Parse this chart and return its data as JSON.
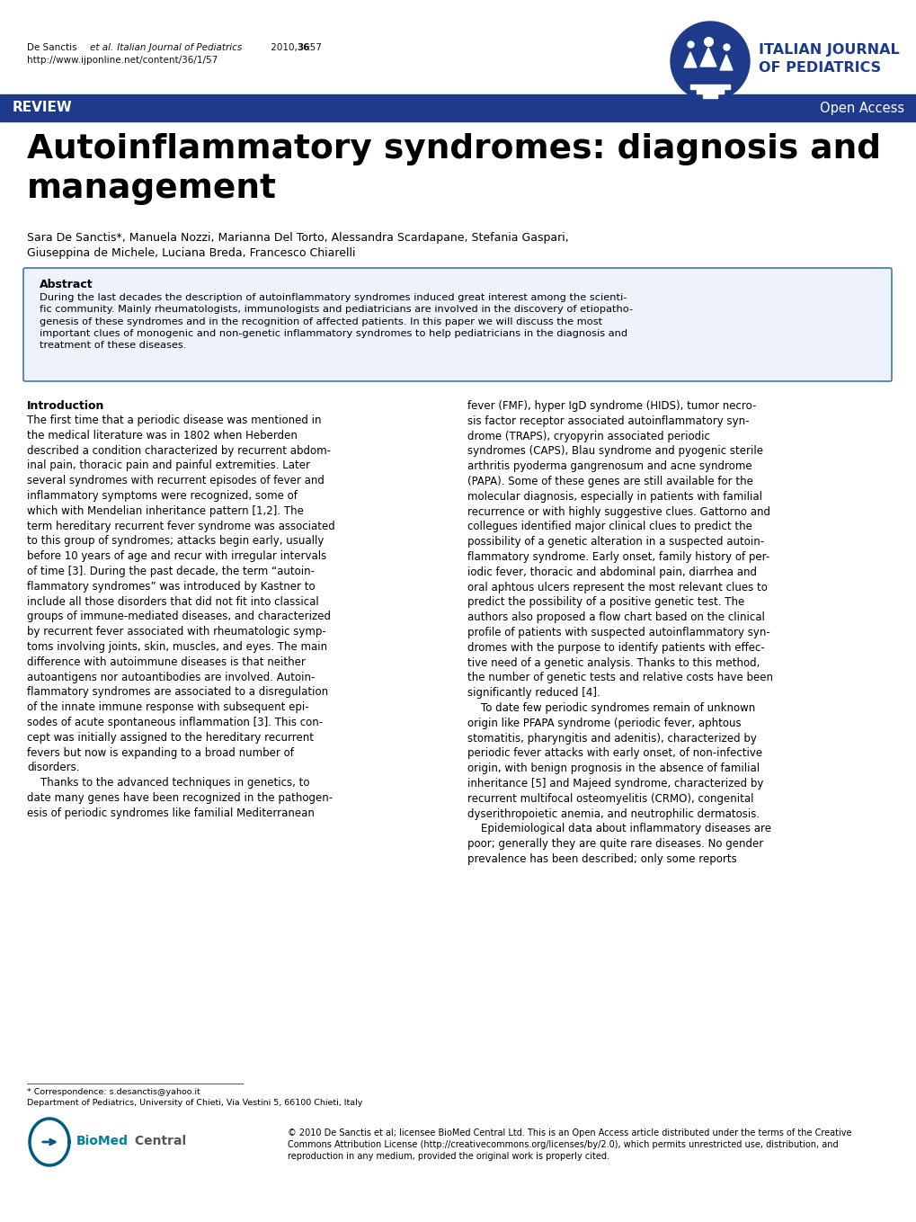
{
  "bg_color": "#ffffff",
  "header_url": "http://www.ijponline.net/content/36/1/57",
  "journal_name_line1": "ITALIAN JOURNAL",
  "journal_name_line2": "OF PEDIATRICS",
  "journal_color": "#1e3a8a",
  "review_bar_color": "#1e3a8a",
  "review_text": "REVIEW",
  "open_access_text": "Open Access",
  "title_line1": "Autoinflammatory syndromes: diagnosis and",
  "title_line2": "management",
  "authors_line1": "Sara De Sanctis*, Manuela Nozzi, Marianna Del Torto, Alessandra Scardapane, Stefania Gaspari,",
  "authors_line2": "Giuseppina de Michele, Luciana Breda, Francesco Chiarelli",
  "abstract_title": "Abstract",
  "abstract_text": "During the last decades the description of autoinflammatory syndromes induced great interest among the scienti-\nfic community. Mainly rheumatologists, immunologists and pediatricians are involved in the discovery of etiopatho-\ngenesis of these syndromes and in the recognition of affected patients. In this paper we will discuss the most\nimportant clues of monogenic and non-genetic inflammatory syndromes to help pediatricians in the diagnosis and\ntreatment of these diseases.",
  "abstract_border_color": "#4472c4",
  "intro_title": "Introduction",
  "intro_col1_para1": "The first time that a periodic disease was mentioned in\nthe medical literature was in 1802 when Heberden\ndescribed a condition characterized by recurrent abdom-\ninal pain, thoracic pain and painful extremities. Later\nseveral syndromes with recurrent episodes of fever and\ninflammatory symptoms were recognized, some of\nwhich with Mendelian inheritance pattern [1,2]. The\nterm hereditary recurrent fever syndrome was associated\nto this group of syndromes; attacks begin early, usually\nbefore 10 years of age and recur with irregular intervals\nof time [3]. During the past decade, the term “autoin-\nflammatory syndromes” was introduced by Kastner to\ninclude all those disorders that did not fit into classical\ngroups of immune-mediated diseases, and characterized\nby recurrent fever associated with rheumatologic symp-\ntoms involving joints, skin, muscles, and eyes. The main\ndifference with autoimmune diseases is that neither\nautoantigens nor autoantibodies are involved. Autoin-\nflammatory syndromes are associated to a disregulation\nof the innate immune response with subsequent epi-\nsodes of acute spontaneous inflammation [3]. This con-\ncept was initially assigned to the hereditary recurrent\nfevers but now is expanding to a broad number of\ndisorders.",
  "intro_col1_para2": "    Thanks to the advanced techniques in genetics, to\ndate many genes have been recognized in the pathogen-\nesis of periodic syndromes like familial Mediterranean",
  "intro_col2_para1": "fever (FMF), hyper IgD syndrome (HIDS), tumor necro-\nsis factor receptor associated autoinflammatory syn-\ndrome (TRAPS), cryopyrin associated periodic\nsyndromes (CAPS), Blau syndrome and pyogenic sterile\narthritis pyoderma gangrenosum and acne syndrome\n(PAPA). Some of these genes are still available for the\nmolecular diagnosis, especially in patients with familial\nrecurrence or with highly suggestive clues. Gattorno and\ncollegues identified major clinical clues to predict the\npossibility of a genetic alteration in a suspected autoin-\nflammatory syndrome. Early onset, family history of per-\niodic fever, thoracic and abdominal pain, diarrhea and\noral aphtous ulcers represent the most relevant clues to\npredict the possibility of a positive genetic test. The\nauthors also proposed a flow chart based on the clinical\nprofile of patients with suspected autoinflammatory syn-\ndromes with the purpose to identify patients with effec-\ntive need of a genetic analysis. Thanks to this method,\nthe number of genetic tests and relative costs have been\nsignificantly reduced [4].",
  "intro_col2_para2": "    To date few periodic syndromes remain of unknown\norigin like PFAPA syndrome (periodic fever, aphtous\nstomatitis, pharyngitis and adenitis), characterized by\nperiodic fever attacks with early onset, of non-infective\norigin, with benign prognosis in the absence of familial\ninheritance [5] and Majeed syndrome, characterized by\nrecurrent multifocal osteomyelitis (CRMO), congenital\ndyserithropoietic anemia, and neutrophilic dermatosis.",
  "intro_col2_para3": "    Epidemiological data about inflammatory diseases are\npoor; generally they are quite rare diseases. No gender\nprevalence has been described; only some reports",
  "footer_line1": "* Correspondence: s.desanctis@yahoo.it",
  "footer_line2": "Department of Pediatrics, University of Chieti, Via Vestini 5, 66100 Chieti, Italy",
  "footer_copy": "© 2010 De Sanctis et al; licensee BioMed Central Ltd. This is an Open Access article distributed under the terms of the Creative\nCommons Attribution License (http://creativecommons.org/licenses/by/2.0), which permits unrestricted use, distribution, and\nreproduction in any medium, provided the original work is properly cited.",
  "text_color": "#000000",
  "body_fontsize": 8.5
}
